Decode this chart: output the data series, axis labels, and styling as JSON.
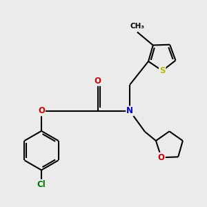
{
  "background_color": "#ebebeb",
  "atom_colors": {
    "C": "#000000",
    "N": "#0000cc",
    "O": "#cc0000",
    "S": "#bbbb00",
    "Cl": "#007700",
    "H": "#000000"
  },
  "bond_color": "#000000",
  "bond_width": 1.5
}
